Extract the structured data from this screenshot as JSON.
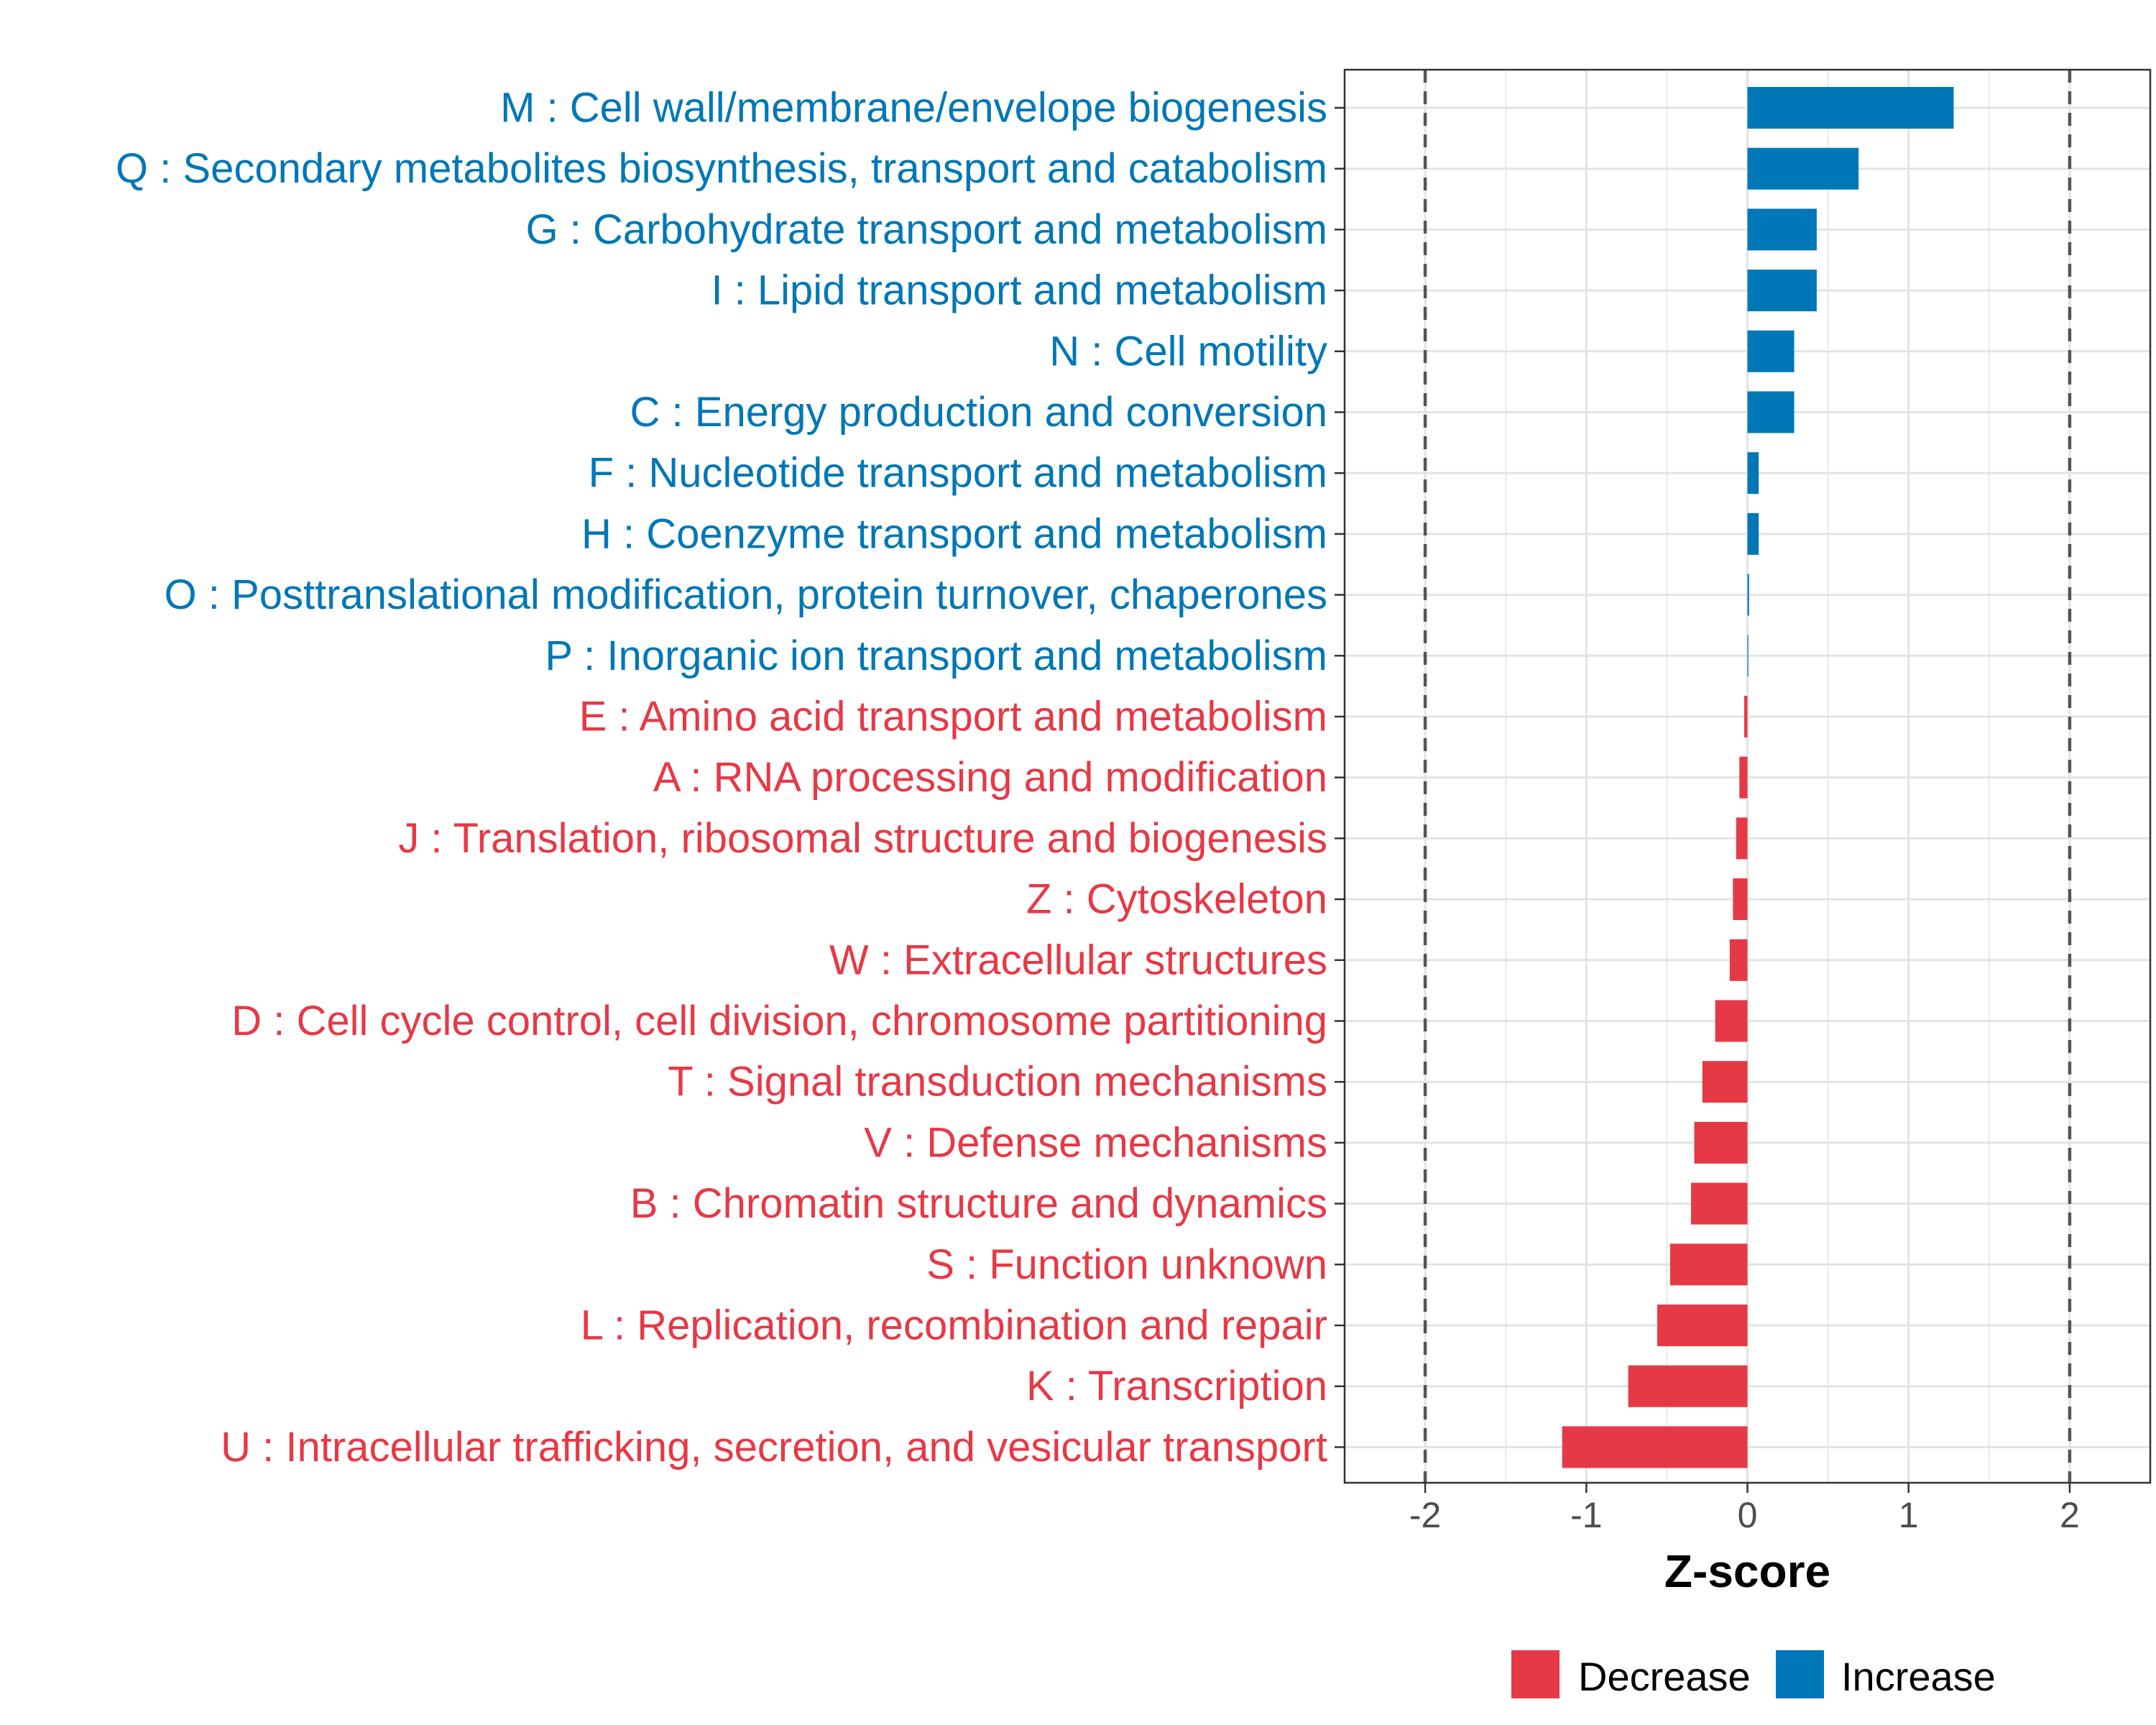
{
  "chart_data": {
    "type": "bar",
    "orientation": "horizontal",
    "xlabel": "Z-score",
    "xlim": [
      -2.5,
      2.5
    ],
    "x_ticks": [
      -2,
      -1,
      0,
      1,
      2
    ],
    "x_tick_labels": [
      "-2",
      "-1",
      "0",
      "1",
      "2"
    ],
    "reference_lines": [
      -2,
      2
    ],
    "grid": true,
    "legend_position": "bottom",
    "colors": {
      "Decrease": "#E63946",
      "Increase": "#0077B6"
    },
    "legend": [
      {
        "name": "Decrease",
        "color": "#E63946"
      },
      {
        "name": "Increase",
        "color": "#0077B6"
      }
    ],
    "categories": [
      "M : Cell wall/membrane/envelope biogenesis",
      "Q : Secondary metabolites biosynthesis, transport and catabolism",
      "G : Carbohydrate transport and metabolism",
      "I : Lipid transport and metabolism",
      "N : Cell motility",
      "C : Energy production and conversion",
      "F : Nucleotide transport and metabolism",
      "H : Coenzyme transport and metabolism",
      "O : Posttranslational modification, protein turnover, chaperones",
      "P : Inorganic ion transport and metabolism",
      "E : Amino acid transport and metabolism",
      "A : RNA processing and modification",
      "J : Translation, ribosomal structure and biogenesis",
      "Z : Cytoskeleton",
      "W : Extracellular structures",
      "D : Cell cycle control, cell division, chromosome partitioning",
      "T : Signal transduction mechanisms",
      "V : Defense mechanisms",
      "B : Chromatin structure and dynamics",
      "S : Function unknown",
      "L : Replication, recombination and repair",
      "K : Transcription",
      "U : Intracellular trafficking, secretion, and vesicular transport"
    ],
    "values": [
      1.28,
      0.69,
      0.43,
      0.43,
      0.29,
      0.29,
      0.07,
      0.07,
      0.01,
      0.005,
      -0.02,
      -0.05,
      -0.07,
      -0.09,
      -0.11,
      -0.2,
      -0.28,
      -0.33,
      -0.35,
      -0.48,
      -0.56,
      -0.74,
      -1.15
    ],
    "direction": [
      "Increase",
      "Increase",
      "Increase",
      "Increase",
      "Increase",
      "Increase",
      "Increase",
      "Increase",
      "Increase",
      "Increase",
      "Decrease",
      "Decrease",
      "Decrease",
      "Decrease",
      "Decrease",
      "Decrease",
      "Decrease",
      "Decrease",
      "Decrease",
      "Decrease",
      "Decrease",
      "Decrease",
      "Decrease"
    ]
  }
}
